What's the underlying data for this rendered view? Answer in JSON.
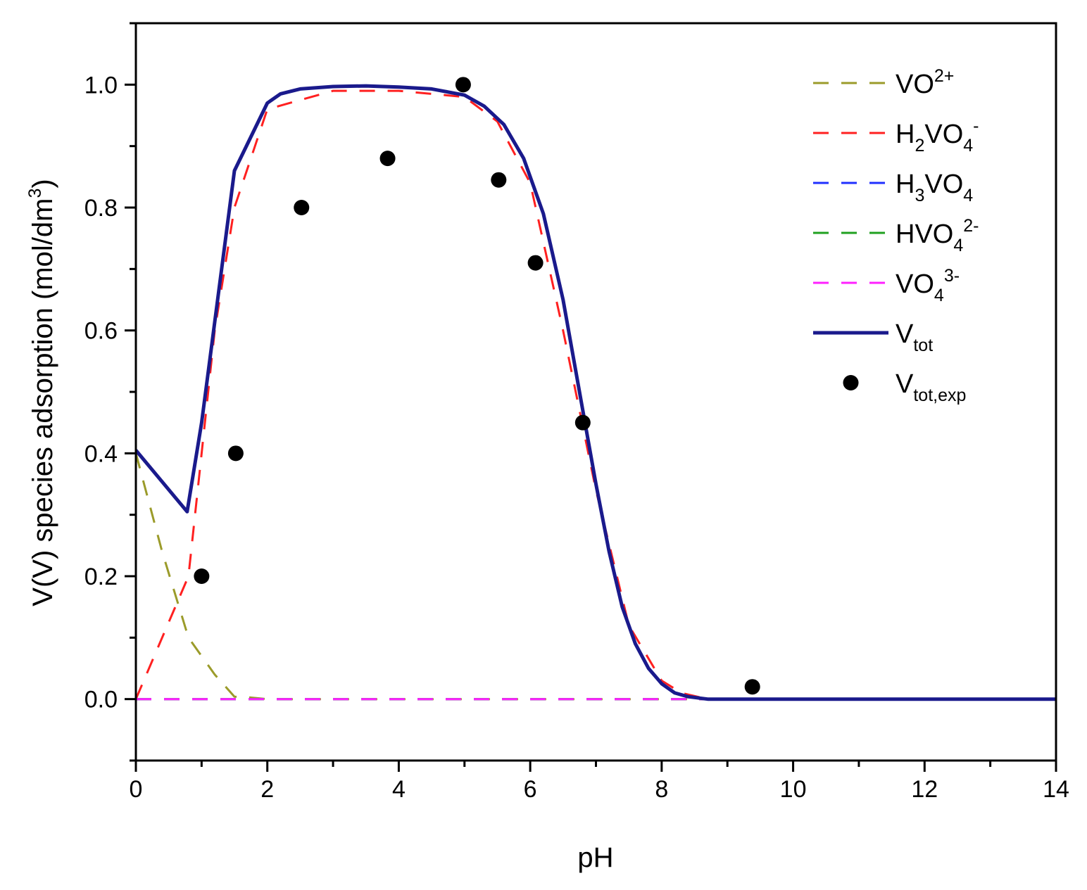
{
  "chart_data": {
    "type": "line",
    "title": "",
    "xlabel": "pH",
    "ylabel": {
      "base": "V(V) species adsorption (mol/dm",
      "sup": "3",
      "end": ")"
    },
    "xlim": [
      0,
      14
    ],
    "ylim": [
      -0.1,
      1.1
    ],
    "xticks": [
      0,
      2,
      4,
      6,
      8,
      10,
      12,
      14
    ],
    "xtick_labels": [
      "0",
      "2",
      "4",
      "6",
      "8",
      "10",
      "12",
      "14"
    ],
    "yticks": [
      0.0,
      0.2,
      0.4,
      0.6,
      0.8,
      1.0
    ],
    "ytick_labels": [
      "0.0",
      "0.2",
      "0.4",
      "0.6",
      "0.8",
      "1.0"
    ],
    "legend_position": "top-right",
    "series": [
      {
        "name": "VO2+",
        "style": "dashed",
        "color": "#9b9b2a",
        "label_parts": [
          {
            "t": "VO"
          },
          {
            "sup": "2+"
          }
        ],
        "x": [
          0,
          0.4,
          0.8,
          1.2,
          1.5,
          1.7,
          2,
          4,
          6,
          8,
          8.7,
          14
        ],
        "y": [
          0.4,
          0.24,
          0.1,
          0.04,
          0.004,
          0.003,
          0,
          0,
          0,
          0,
          0,
          0
        ]
      },
      {
        "name": "H2VO4-",
        "style": "dashed",
        "color": "#ff2020",
        "label_parts": [
          {
            "t": "H"
          },
          {
            "sub": "2"
          },
          {
            "t": "VO"
          },
          {
            "sub": "4"
          },
          {
            "sup": "-"
          }
        ],
        "x": [
          0,
          0.4,
          0.8,
          1.0,
          1.2,
          1.5,
          2,
          3,
          4,
          5,
          5.5,
          6,
          6.5,
          7,
          7.5,
          8,
          8.3,
          8.7,
          9,
          14
        ],
        "y": [
          0,
          0.1,
          0.2,
          0.4,
          0.6,
          0.8,
          0.96,
          0.99,
          0.99,
          0.98,
          0.94,
          0.84,
          0.6,
          0.34,
          0.12,
          0.03,
          0.01,
          0,
          0,
          0
        ]
      },
      {
        "name": "H3VO4",
        "style": "dashed",
        "color": "#2030ff",
        "label_parts": [
          {
            "t": "H"
          },
          {
            "sub": "3"
          },
          {
            "t": "VO"
          },
          {
            "sub": "4"
          }
        ],
        "x": [
          0,
          14
        ],
        "y": [
          0,
          0
        ]
      },
      {
        "name": "HVO42-",
        "style": "dashed",
        "color": "#20a020",
        "label_parts": [
          {
            "t": "HVO"
          },
          {
            "sub": "4"
          },
          {
            "sup": "2-"
          }
        ],
        "x": [
          0,
          14
        ],
        "y": [
          0,
          0
        ]
      },
      {
        "name": "VO43-",
        "style": "dashed",
        "color": "#ff20ff",
        "label_parts": [
          {
            "t": "VO"
          },
          {
            "sub": "4"
          },
          {
            "sup": "3-"
          }
        ],
        "x": [
          0,
          14
        ],
        "y": [
          0,
          0
        ]
      },
      {
        "name": "Vtot",
        "style": "solid",
        "color": "#1a1a8c",
        "label_parts": [
          {
            "t": "V"
          },
          {
            "sub": "tot"
          }
        ],
        "x": [
          0,
          0.78,
          1.0,
          1.5,
          2.0,
          2.2,
          2.5,
          3.0,
          3.5,
          4.0,
          4.5,
          5.0,
          5.3,
          5.6,
          5.9,
          6.2,
          6.5,
          6.8,
          7.0,
          7.2,
          7.4,
          7.6,
          7.8,
          8.0,
          8.2,
          8.4,
          8.7,
          9.0,
          14
        ],
        "y": [
          0.405,
          0.305,
          0.45,
          0.86,
          0.97,
          0.985,
          0.993,
          0.997,
          0.998,
          0.996,
          0.993,
          0.983,
          0.965,
          0.935,
          0.88,
          0.79,
          0.65,
          0.47,
          0.35,
          0.24,
          0.15,
          0.09,
          0.05,
          0.025,
          0.01,
          0.004,
          0,
          0,
          0
        ]
      },
      {
        "name": "Vtot,exp",
        "style": "markers",
        "color": "#000000",
        "label_parts": [
          {
            "t": "V"
          },
          {
            "sub": "tot,exp"
          }
        ],
        "x": [
          1.0,
          1.52,
          2.52,
          3.83,
          4.98,
          5.52,
          6.08,
          6.8,
          9.38
        ],
        "y": [
          0.2,
          0.4,
          0.8,
          0.88,
          1.0,
          0.845,
          0.71,
          0.45,
          0.02
        ]
      }
    ]
  }
}
